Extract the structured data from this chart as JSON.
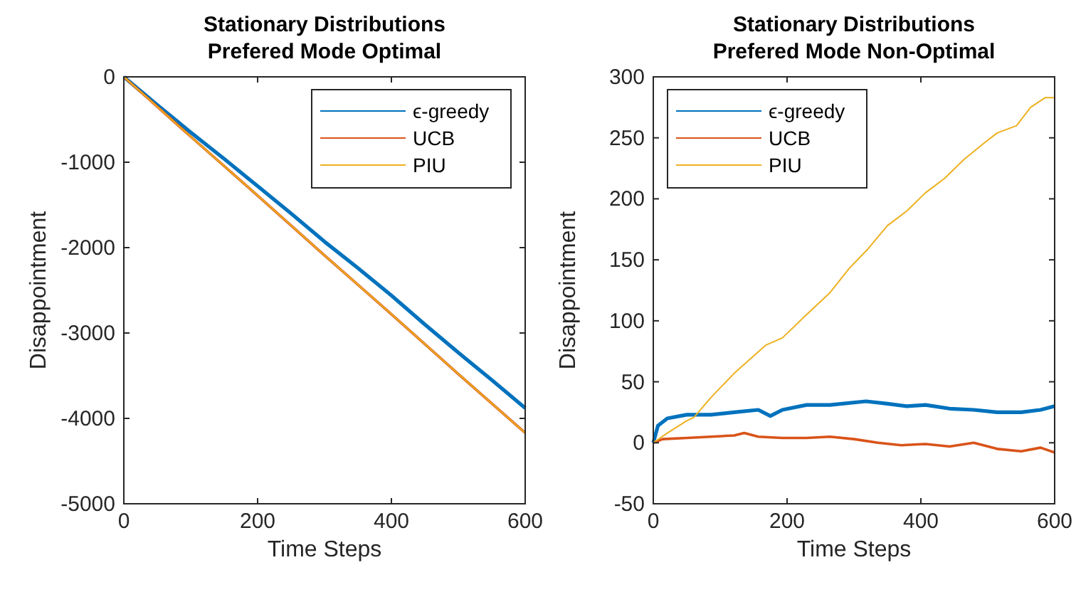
{
  "chart_data": [
    {
      "type": "line",
      "title": "Stationary Distributions\nPrefered Mode Optimal",
      "xlabel": "Time Steps",
      "ylabel": "Disappointment",
      "xlim": [
        0,
        600
      ],
      "xticks": [
        0,
        200,
        400,
        600
      ],
      "ylim": [
        -5000,
        0
      ],
      "yticks": [
        -5000,
        -4000,
        -3000,
        -2000,
        -1000,
        0
      ],
      "legend": "top right",
      "grid": false,
      "series": [
        {
          "name": "ϵ-greedy",
          "color": "#0072bd",
          "x": [
            0,
            50,
            100,
            150,
            200,
            250,
            300,
            350,
            400,
            450,
            500,
            550,
            600
          ],
          "values": [
            0,
            -330,
            -650,
            -960,
            -1280,
            -1600,
            -1930,
            -2240,
            -2560,
            -2900,
            -3230,
            -3550,
            -3880
          ]
        },
        {
          "name": "UCB",
          "color": "#d95319",
          "x": [
            0,
            100,
            200,
            300,
            400,
            500,
            600
          ],
          "values": [
            0,
            -700,
            -1390,
            -2090,
            -2780,
            -3480,
            -4170
          ]
        },
        {
          "name": "PIU",
          "color": "#edb120",
          "x": [
            0,
            100,
            200,
            300,
            400,
            500,
            600
          ],
          "values": [
            0,
            -700,
            -1390,
            -2090,
            -2780,
            -3480,
            -4170
          ]
        }
      ]
    },
    {
      "type": "line",
      "title": "Stationary Distributions\nPrefered Mode Non-Optimal",
      "xlabel": "Time Steps",
      "ylabel": "Disappointment",
      "xlim": [
        0,
        600
      ],
      "xticks": [
        0,
        200,
        400,
        600
      ],
      "ylim": [
        -50,
        300
      ],
      "yticks": [
        -50,
        0,
        50,
        100,
        150,
        200,
        250,
        300
      ],
      "legend": "top left",
      "grid": false,
      "series": [
        {
          "name": "ϵ-greedy",
          "color": "#0072bd",
          "x": [
            0,
            7,
            21,
            50,
            86,
            121,
            157,
            175,
            193,
            229,
            264,
            318,
            350,
            379,
            407,
            443,
            479,
            514,
            550,
            579,
            600
          ],
          "values": [
            0,
            14,
            20,
            23,
            23,
            25,
            27,
            22,
            27,
            31,
            31,
            34,
            32,
            30,
            31,
            28,
            27,
            25,
            25,
            27,
            30
          ]
        },
        {
          "name": "UCB",
          "color": "#d95319",
          "x": [
            0,
            14,
            50,
            86,
            121,
            136,
            157,
            193,
            229,
            264,
            300,
            336,
            371,
            407,
            443,
            479,
            514,
            550,
            579,
            600
          ],
          "values": [
            0,
            3,
            4,
            5,
            6,
            8,
            5,
            4,
            4,
            5,
            3,
            0,
            -2,
            -1,
            -3,
            0,
            -5,
            -7,
            -4,
            -8
          ]
        },
        {
          "name": "PIU",
          "color": "#edb120",
          "x": [
            0,
            21,
            50,
            61,
            86,
            121,
            168,
            193,
            229,
            264,
            293,
            321,
            350,
            379,
            407,
            436,
            464,
            493,
            514,
            543,
            564,
            586,
            600
          ],
          "values": [
            0,
            8,
            18,
            21,
            37,
            57,
            80,
            86,
            105,
            123,
            143,
            159,
            178,
            190,
            205,
            217,
            232,
            245,
            254,
            260,
            275,
            283,
            283
          ]
        }
      ]
    }
  ]
}
